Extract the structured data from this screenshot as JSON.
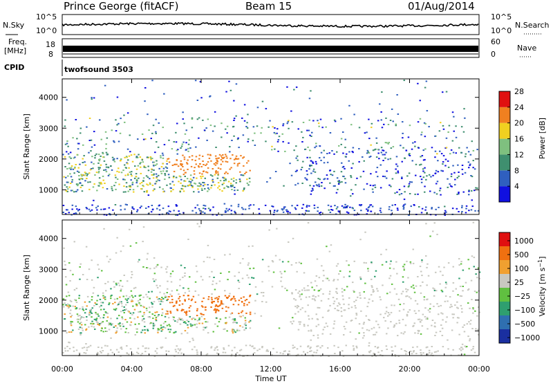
{
  "header": {
    "station": "Prince George (fitACF)",
    "beam": "Beam 15",
    "date": "01/Aug/2014"
  },
  "noise_panel": {
    "left_label": "N.Sky",
    "right_label": "N.Search",
    "left_ticks": [
      "10^5",
      "10^0"
    ],
    "right_ticks": [
      "10^5",
      "10^0"
    ]
  },
  "freq_panel": {
    "left_label_top": "Freq.",
    "left_label_unit": "[MHz]",
    "left_ticks": [
      "18",
      "8"
    ],
    "right_label": "Nave",
    "right_ticks": [
      "60",
      "0"
    ]
  },
  "cpid": {
    "label": "CPID",
    "value": "twofsound 3503"
  },
  "chart_data": [
    {
      "type": "heatmap",
      "name": "power",
      "ylabel": "Slant Range [km]",
      "yticks": [
        1000,
        2000,
        3000,
        4000
      ],
      "ylim": [
        200,
        4600
      ],
      "colorbar_label": "Power [dB]",
      "colorbar_ticks": [
        4,
        8,
        12,
        16,
        20,
        24,
        28
      ],
      "colorbar_colors": [
        "#1010e0",
        "#2f5fbf",
        "#3f8f6f",
        "#7fc07f",
        "#f0d020",
        "#f08020",
        "#e01010"
      ]
    },
    {
      "type": "heatmap",
      "name": "velocity",
      "ylabel": "Slant Range [km]",
      "yticks": [
        1000,
        2000,
        3000,
        4000
      ],
      "ylim": [
        200,
        4600
      ],
      "colorbar_label": "Velocity [m s^-1]",
      "colorbar_ticks": [
        "1000",
        "500",
        "100",
        "25",
        "−25",
        "−100",
        "−500",
        "−1000"
      ],
      "colorbar_colors": [
        "#1a2fa0",
        "#2f6fb0",
        "#2f9f6f",
        "#60c040",
        "#c8c8c0",
        "#f0a030",
        "#f07010",
        "#e01010"
      ]
    }
  ],
  "time_axis": {
    "label": "Time UT",
    "ticks": [
      "00:00",
      "04:00",
      "08:00",
      "12:00",
      "16:00",
      "20:00",
      "00:00"
    ]
  }
}
